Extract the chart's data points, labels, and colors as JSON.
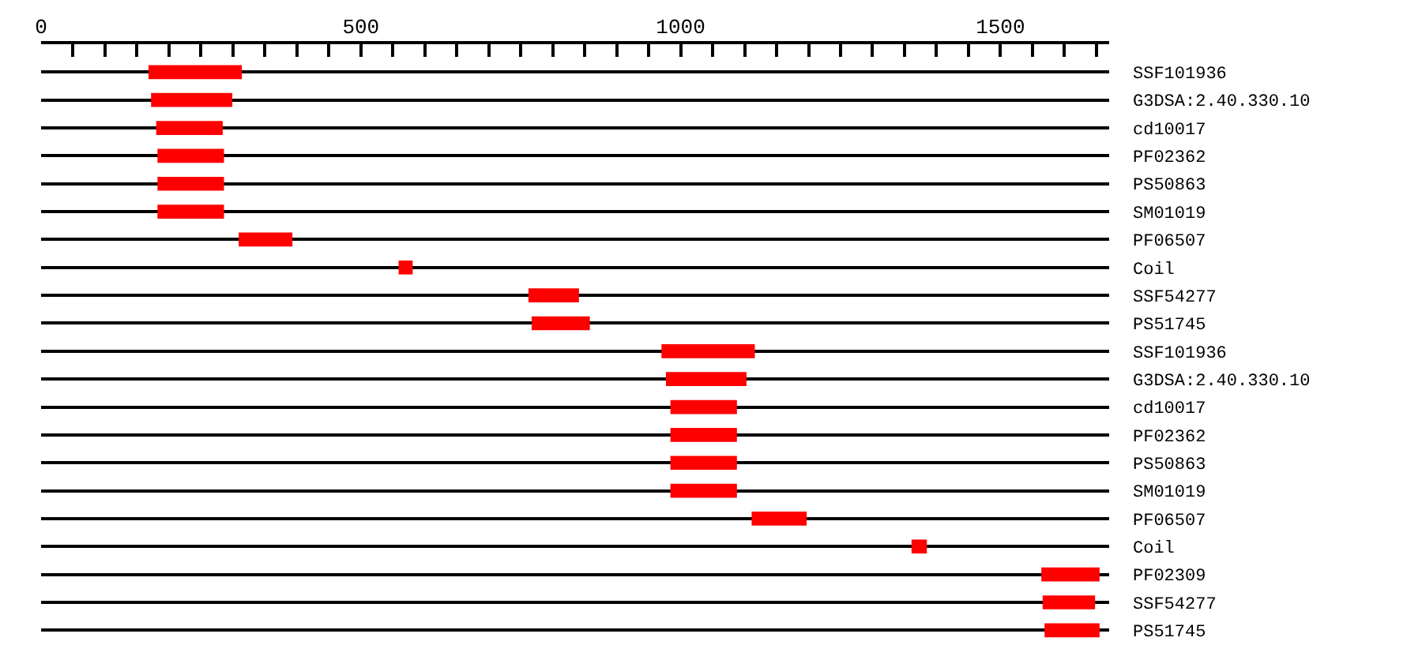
{
  "chart_data": {
    "type": "bar",
    "orientation": "horizontal",
    "color": "#ff0000",
    "categories": [
      "SSF101936",
      "G3DSA:2.40.330.10",
      "cd10017",
      "PF02362",
      "PS50863",
      "SM01019",
      "PF06507",
      "Coil",
      "SSF54277",
      "PS51745",
      "SSF101936",
      "G3DSA:2.40.330.10",
      "cd10017",
      "PF02362",
      "PS50863",
      "SM01019",
      "PF06507",
      "Coil",
      "PF02309",
      "SSF54277",
      "PS51745"
    ],
    "base": [
      168,
      172,
      180,
      182,
      182,
      182,
      309,
      559,
      762,
      767,
      970,
      977,
      984,
      984,
      984,
      984,
      1111,
      1361,
      1564,
      1566,
      1569
    ],
    "values": [
      146,
      127,
      104,
      104,
      104,
      104,
      84,
      22,
      79,
      91,
      146,
      126,
      104,
      104,
      104,
      104,
      86,
      24,
      91,
      82,
      86
    ],
    "xlim": [
      0,
      1670
    ],
    "xticks": [
      0,
      {
        "value": 50,
        "label": null
      },
      {
        "value": 100,
        "label": null
      },
      {
        "value": 150,
        "label": null
      },
      {
        "value": 200,
        "label": null
      },
      {
        "value": 250,
        "label": null
      },
      {
        "value": 300,
        "label": null
      },
      {
        "value": 350,
        "label": null
      },
      {
        "value": 400,
        "label": null
      },
      {
        "value": 450,
        "label": null
      },
      500,
      {
        "value": 550,
        "label": null
      },
      {
        "value": 600,
        "label": null
      },
      {
        "value": 650,
        "label": null
      },
      {
        "value": 700,
        "label": null
      },
      {
        "value": 750,
        "label": null
      },
      {
        "value": 800,
        "label": null
      },
      {
        "value": 850,
        "label": null
      },
      {
        "value": 900,
        "label": null
      },
      {
        "value": 950,
        "label": null
      },
      1000,
      {
        "value": 1050,
        "label": null
      },
      {
        "value": 1100,
        "label": null
      },
      {
        "value": 1150,
        "label": null
      },
      {
        "value": 1200,
        "label": null
      },
      {
        "value": 1250,
        "label": null
      },
      {
        "value": 1300,
        "label": null
      },
      {
        "value": 1350,
        "label": null
      },
      {
        "value": 1400,
        "label": null
      },
      {
        "value": 1450,
        "label": null
      },
      1500,
      {
        "value": 1550,
        "label": null
      },
      {
        "value": 1600,
        "label": null
      },
      {
        "value": 1650,
        "label": null
      }
    ],
    "grid": "y",
    "legend": false
  }
}
